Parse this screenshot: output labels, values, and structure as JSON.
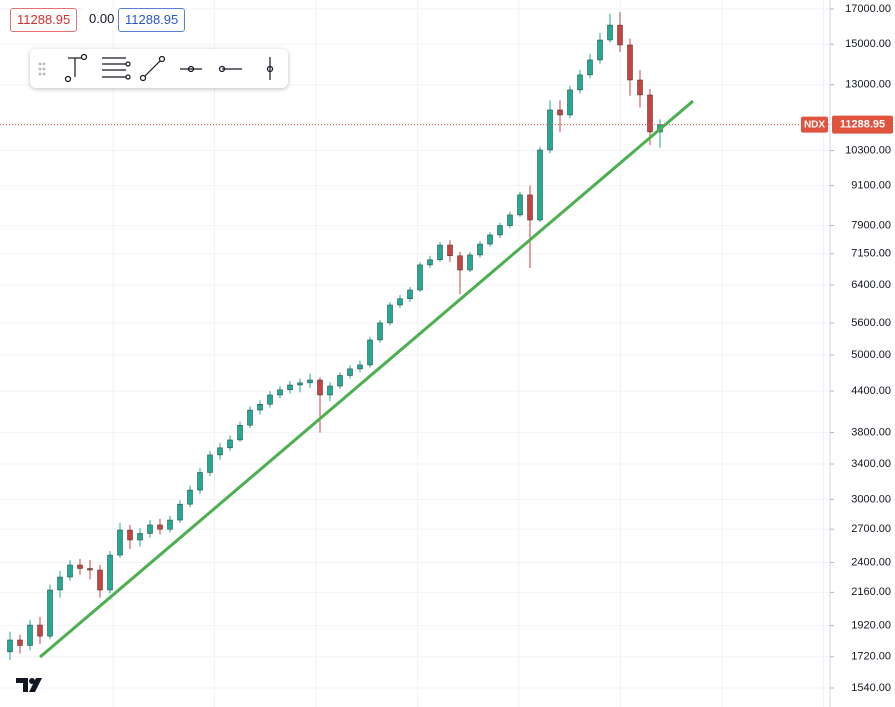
{
  "chart_data": {
    "type": "candlestick",
    "symbol": "NDX",
    "last_price": 11288.95,
    "legend_values": [
      11288.95,
      {
        "value": 0,
        "label": "0.00"
      },
      11288.95
    ],
    "log_scale": true,
    "grid": true,
    "up_color": "#22ab94",
    "down_color": "#c8433f",
    "last_price_color": "#e0533f",
    "ylim": [
      1440,
      17540
    ],
    "yticks": [
      {
        "value": 1540,
        "label": "1540.00"
      },
      {
        "value": 1720,
        "label": "1720.00"
      },
      {
        "value": 1920,
        "label": "1920.00"
      },
      {
        "value": 2160,
        "label": "2160.00"
      },
      {
        "value": 2400,
        "label": "2400.00"
      },
      {
        "value": 2700,
        "label": "2700.00"
      },
      {
        "value": 3000,
        "label": "3000.00"
      },
      {
        "value": 3400,
        "label": "3400.00"
      },
      {
        "value": 3800,
        "label": "3800.00"
      },
      {
        "value": 4400,
        "label": "4400.00"
      },
      {
        "value": 5000,
        "label": "5000.00"
      },
      {
        "value": 5600,
        "label": "5600.00"
      },
      {
        "value": 6400,
        "label": "6400.00"
      },
      {
        "value": 7150,
        "label": "7150.00"
      },
      {
        "value": 7900,
        "label": "7900.00"
      },
      {
        "value": 9100,
        "label": "9100.00"
      },
      {
        "value": 10300,
        "label": "10300.00"
      },
      {
        "value": 13000,
        "label": "13000.00"
      },
      {
        "value": 15000,
        "label": "15000.00"
      },
      {
        "value": 17000,
        "label": "17000.00"
      }
    ],
    "open": [
      1750,
      1825,
      1790,
      1924,
      1850,
      2178,
      2280,
      2379,
      2350,
      2337,
      2178,
      2464,
      2692,
      2599,
      2660,
      2741,
      2700,
      2789,
      2950,
      3101,
      3300,
      3511,
      3600,
      3702,
      3900,
      4115,
      4200,
      4340,
      4420,
      4496,
      4530,
      4576,
      4340,
      4480,
      4650,
      4760,
      4826,
      5272,
      5600,
      5966,
      6100,
      6291,
      6874,
      7000,
      7375,
      7100,
      6752,
      7121,
      7400,
      7643,
      7900,
      8203,
      8805,
      8057,
      10321,
      11889,
      11681,
      12764,
      13460,
      14190,
      15226,
      16050,
      14961,
      13219,
      12537,
      11000
    ],
    "high": [
      1880,
      1860,
      1960,
      1980,
      2220,
      2330,
      2420,
      2430,
      2420,
      2380,
      2500,
      2760,
      2740,
      2710,
      2790,
      2800,
      2830,
      2990,
      3150,
      3350,
      3560,
      3660,
      3760,
      3950,
      4170,
      4260,
      4400,
      4480,
      4560,
      4600,
      4680,
      4620,
      4540,
      4700,
      4820,
      4900,
      5330,
      5660,
      6030,
      6180,
      6360,
      6940,
      7100,
      7450,
      7500,
      7200,
      7200,
      7480,
      7720,
      7980,
      8300,
      8900,
      9100,
      10450,
      12300,
      12300,
      12950,
      13700,
      14500,
      15600,
      16700,
      16800,
      15300,
      13700,
      12800,
      11500
    ],
    "low": [
      1700,
      1740,
      1760,
      1800,
      1830,
      2120,
      2250,
      2300,
      2260,
      2120,
      2150,
      2440,
      2520,
      2540,
      2620,
      2650,
      2670,
      2760,
      2920,
      3060,
      3260,
      3450,
      3560,
      3680,
      3860,
      4050,
      4150,
      4290,
      4360,
      4380,
      4450,
      3800,
      4250,
      4430,
      4600,
      4700,
      4780,
      5220,
      5550,
      5900,
      6030,
      6250,
      6800,
      6950,
      6950,
      6200,
      6700,
      7050,
      7330,
      7560,
      7830,
      8150,
      6800,
      8000,
      10200,
      11000,
      11550,
      12600,
      13300,
      14000,
      15100,
      14600,
      12500,
      12000,
      10500,
      10400
    ],
    "close": [
      1825,
      1790,
      1924,
      1850,
      2178,
      2280,
      2379,
      2350,
      2337,
      2178,
      2464,
      2692,
      2599,
      2660,
      2741,
      2700,
      2789,
      2950,
      3101,
      3300,
      3511,
      3600,
      3702,
      3900,
      4115,
      4200,
      4340,
      4420,
      4496,
      4530,
      4576,
      4340,
      4480,
      4650,
      4760,
      4826,
      5272,
      5600,
      5966,
      6100,
      6291,
      6874,
      7000,
      7375,
      7100,
      6752,
      7121,
      7400,
      7643,
      7900,
      8203,
      8805,
      8057,
      10321,
      11889,
      11681,
      12764,
      13460,
      14190,
      15226,
      16050,
      14961,
      13219,
      12537,
      11000,
      11288.95
    ],
    "trendline": {
      "color": "#4caf50",
      "start": {
        "x": 3,
        "price": 1718
      },
      "end": {
        "x": 68.3,
        "price": 12270
      }
    }
  }
}
